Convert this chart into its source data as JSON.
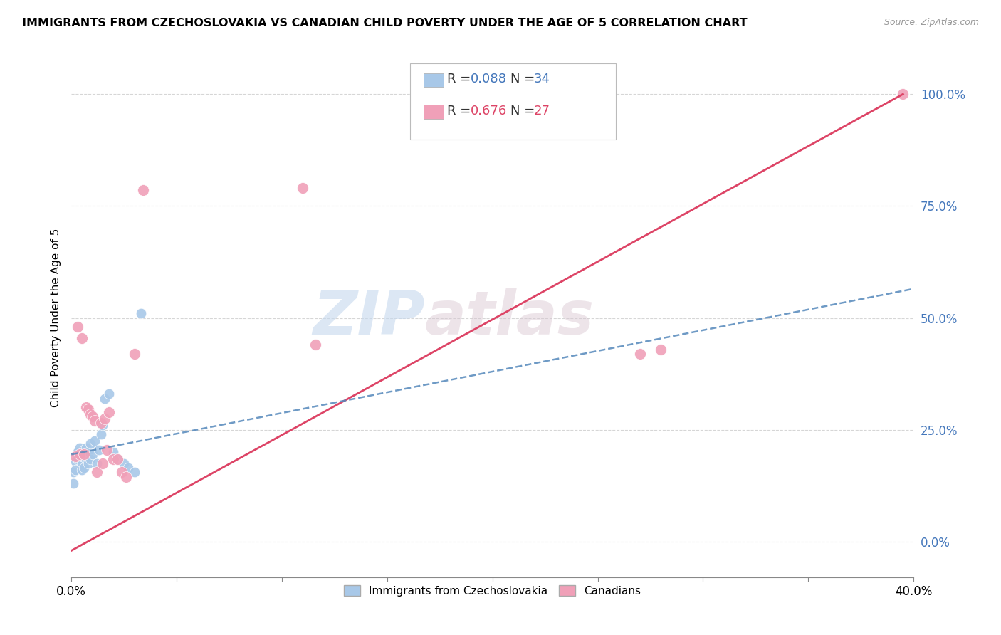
{
  "title": "IMMIGRANTS FROM CZECHOSLOVAKIA VS CANADIAN CHILD POVERTY UNDER THE AGE OF 5 CORRELATION CHART",
  "source": "Source: ZipAtlas.com",
  "ylabel": "Child Poverty Under the Age of 5",
  "xlim": [
    0.0,
    0.4
  ],
  "ylim": [
    -0.08,
    1.08
  ],
  "yticks": [
    0.0,
    0.25,
    0.5,
    0.75,
    1.0
  ],
  "ytick_labels": [
    "0.0%",
    "25.0%",
    "50.0%",
    "75.0%",
    "100.0%"
  ],
  "xticks": [
    0.0,
    0.05,
    0.1,
    0.15,
    0.2,
    0.25,
    0.3,
    0.35,
    0.4
  ],
  "xtick_labels": [
    "0.0%",
    "",
    "",
    "",
    "",
    "",
    "",
    "",
    "40.0%"
  ],
  "blue_R": 0.088,
  "blue_N": 34,
  "pink_R": 0.676,
  "pink_N": 27,
  "blue_color": "#a8c8e8",
  "pink_color": "#f0a0b8",
  "blue_line_color": "#5588bb",
  "pink_line_color": "#dd4466",
  "watermark_zip": "ZIP",
  "watermark_atlas": "atlas",
  "blue_scatter_x": [
    0.001,
    0.001,
    0.002,
    0.002,
    0.003,
    0.003,
    0.004,
    0.004,
    0.005,
    0.005,
    0.005,
    0.006,
    0.006,
    0.006,
    0.007,
    0.007,
    0.008,
    0.008,
    0.009,
    0.009,
    0.01,
    0.011,
    0.012,
    0.013,
    0.014,
    0.015,
    0.016,
    0.018,
    0.02,
    0.022,
    0.025,
    0.027,
    0.03,
    0.033
  ],
  "blue_scatter_y": [
    0.155,
    0.13,
    0.18,
    0.16,
    0.2,
    0.185,
    0.21,
    0.195,
    0.175,
    0.16,
    0.19,
    0.205,
    0.195,
    0.165,
    0.21,
    0.185,
    0.2,
    0.175,
    0.22,
    0.185,
    0.195,
    0.225,
    0.175,
    0.205,
    0.24,
    0.26,
    0.32,
    0.33,
    0.2,
    0.185,
    0.175,
    0.165,
    0.155,
    0.51
  ],
  "pink_scatter_x": [
    0.002,
    0.003,
    0.004,
    0.005,
    0.006,
    0.007,
    0.008,
    0.009,
    0.01,
    0.011,
    0.012,
    0.014,
    0.015,
    0.016,
    0.017,
    0.018,
    0.02,
    0.022,
    0.024,
    0.026,
    0.03,
    0.034,
    0.11,
    0.116,
    0.27,
    0.28,
    0.395
  ],
  "pink_scatter_y": [
    0.19,
    0.48,
    0.195,
    0.455,
    0.195,
    0.3,
    0.295,
    0.285,
    0.28,
    0.27,
    0.155,
    0.265,
    0.175,
    0.275,
    0.205,
    0.29,
    0.185,
    0.185,
    0.155,
    0.145,
    0.42,
    0.785,
    0.79,
    0.44,
    0.42,
    0.43,
    1.0
  ],
  "pink_line_x0": 0.0,
  "pink_line_y0": -0.02,
  "pink_line_x1": 0.395,
  "pink_line_y1": 1.0,
  "blue_line_x0": 0.0,
  "blue_line_y0": 0.195,
  "blue_line_x1": 0.4,
  "blue_line_y1": 0.565
}
